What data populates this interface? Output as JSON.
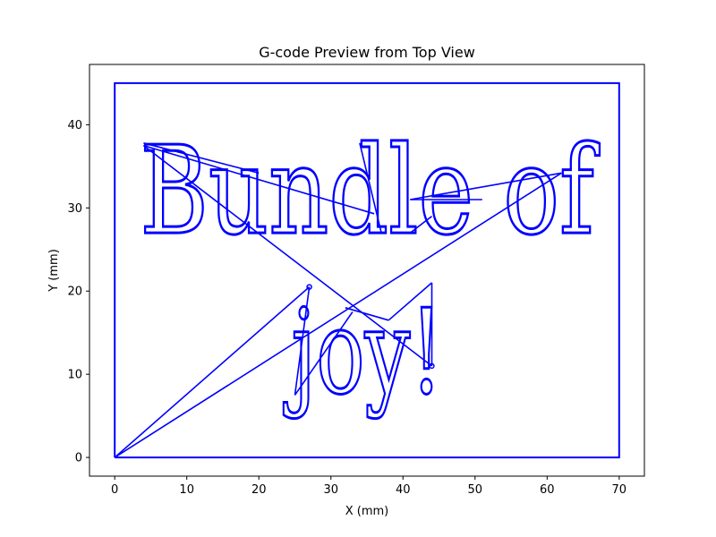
{
  "chart_data": {
    "type": "line",
    "title": "G-code Preview from Top View",
    "xlabel": "X (mm)",
    "ylabel": "Y (mm)",
    "xlim": [
      -3.5,
      73.5
    ],
    "ylim": [
      -2.25,
      47.25
    ],
    "xticks": [
      0,
      10,
      20,
      30,
      40,
      50,
      60,
      70
    ],
    "yticks": [
      0,
      10,
      20,
      30,
      40
    ],
    "grid": false,
    "line_color": "#0000ff",
    "series": [
      {
        "name": "bed-border",
        "x": [
          0,
          0,
          70,
          70,
          0
        ],
        "y": [
          0,
          45,
          45,
          0,
          0
        ]
      },
      {
        "name": "travel-moves",
        "segments": [
          {
            "x": [
              0,
              27
            ],
            "y": [
              0,
              20.5
            ]
          },
          {
            "x": [
              27,
              25
            ],
            "y": [
              20.5,
              7.5
            ]
          },
          {
            "x": [
              25,
              33
            ],
            "y": [
              7.5,
              17.5
            ]
          },
          {
            "x": [
              0,
              62
            ],
            "y": [
              0,
              34.2
            ]
          },
          {
            "x": [
              62,
              41
            ],
            "y": [
              34.2,
              31
            ]
          },
          {
            "x": [
              41,
              51
            ],
            "y": [
              31,
              31
            ]
          },
          {
            "x": [
              36,
              4
            ],
            "y": [
              29.3,
              37.5
            ]
          },
          {
            "x": [
              4,
              44
            ],
            "y": [
              37.5,
              11
            ]
          },
          {
            "x": [
              44,
              44
            ],
            "y": [
              11,
              21
            ]
          },
          {
            "x": [
              44,
              38
            ],
            "y": [
              21,
              16.5
            ]
          },
          {
            "x": [
              38,
              32
            ],
            "y": [
              16.5,
              18
            ]
          },
          {
            "x": [
              41,
              44
            ],
            "y": [
              27,
              29
            ]
          },
          {
            "x": [
              37,
              34
            ],
            "y": [
              27,
              37.8
            ]
          },
          {
            "x": [
              4,
              20
            ],
            "y": [
              37.8,
              34.2
            ]
          }
        ]
      }
    ],
    "text_glyphs": [
      {
        "text": "Bundle of",
        "x": 3.5,
        "y": 27,
        "height_mm": 13.5,
        "width_mm": 63
      },
      {
        "text": "joy!",
        "x": 24.5,
        "y": 7.8,
        "height_mm": 13,
        "width_mm": 21
      }
    ]
  }
}
